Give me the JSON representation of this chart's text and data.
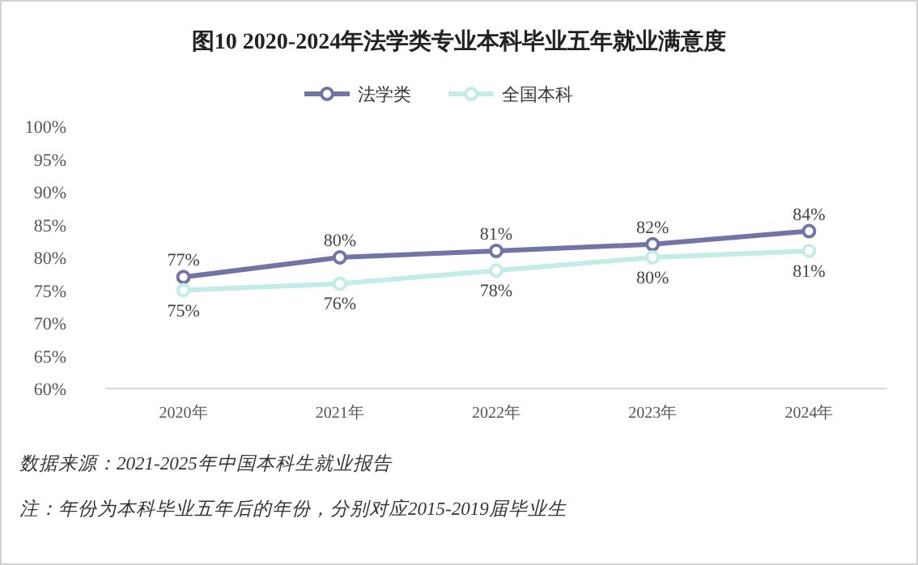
{
  "chart_data": {
    "type": "line",
    "title": "图10  2020-2024年法学类专业本科毕业五年就业满意度",
    "categories": [
      "2020年",
      "2021年",
      "2022年",
      "2023年",
      "2024年"
    ],
    "series": [
      {
        "name": "法学类",
        "color": "#7274a8",
        "values": [
          77,
          80,
          81,
          82,
          84
        ],
        "value_labels": [
          "77%",
          "80%",
          "81%",
          "82%",
          "84%"
        ]
      },
      {
        "name": "全国本科",
        "color": "#c4ece7",
        "values": [
          75,
          76,
          78,
          80,
          81
        ],
        "value_labels": [
          "75%",
          "76%",
          "78%",
          "80%",
          "81%"
        ]
      }
    ],
    "ylim": [
      60,
      100
    ],
    "yticks": [
      {
        "value": 60,
        "label": "60%"
      },
      {
        "value": 65,
        "label": "65%"
      },
      {
        "value": 70,
        "label": "70%"
      },
      {
        "value": 75,
        "label": "75%"
      },
      {
        "value": 80,
        "label": "80%"
      },
      {
        "value": 85,
        "label": "85%"
      },
      {
        "value": 90,
        "label": "90%"
      },
      {
        "value": 95,
        "label": "95%"
      },
      {
        "value": 100,
        "label": "100%"
      }
    ],
    "legend": "top",
    "marker": "circle",
    "line_style": "solid",
    "annotations": [
      "数据来源：2021-2025年中国本科生就业报告",
      "注：年份为本科毕业五年后的年份，分别对应2015-2019届毕业生"
    ]
  }
}
